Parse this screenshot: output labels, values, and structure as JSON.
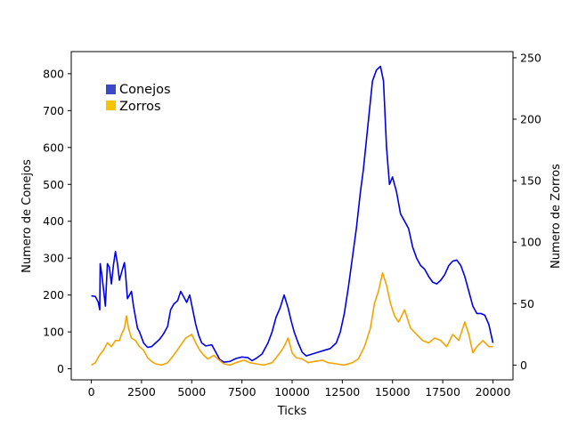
{
  "chart_data": {
    "type": "line",
    "title": "",
    "xlabel": "Ticks",
    "ylabel_left": "Numero de Conejos",
    "ylabel_right": "Numero de Zorros",
    "xlim": [
      -1000,
      21000
    ],
    "ylim_left": [
      -30,
      860
    ],
    "ylim_right": [
      -12,
      255
    ],
    "x_ticks": [
      0,
      2500,
      5000,
      7500,
      10000,
      12500,
      15000,
      17500,
      20000
    ],
    "y_ticks_left": [
      0,
      100,
      200,
      300,
      400,
      500,
      600,
      700,
      800
    ],
    "y_ticks_right": [
      0,
      50,
      100,
      150,
      200,
      250
    ],
    "grid": false,
    "legend_position": "upper-left",
    "legend": [
      {
        "label": "Conejos",
        "color": "#3b49c8"
      },
      {
        "label": "Zorros",
        "color": "#f5c400"
      }
    ],
    "series": [
      {
        "name": "Conejos",
        "axis": "left",
        "color": "#0000e6",
        "points": [
          [
            0,
            198
          ],
          [
            200,
            196
          ],
          [
            350,
            180
          ],
          [
            420,
            160
          ],
          [
            440,
            285
          ],
          [
            520,
            255
          ],
          [
            620,
            210
          ],
          [
            700,
            170
          ],
          [
            800,
            285
          ],
          [
            900,
            275
          ],
          [
            1000,
            230
          ],
          [
            1100,
            280
          ],
          [
            1200,
            318
          ],
          [
            1300,
            285
          ],
          [
            1400,
            240
          ],
          [
            1550,
            270
          ],
          [
            1650,
            288
          ],
          [
            1700,
            260
          ],
          [
            1800,
            190
          ],
          [
            1900,
            200
          ],
          [
            2000,
            210
          ],
          [
            2100,
            170
          ],
          [
            2200,
            140
          ],
          [
            2300,
            110
          ],
          [
            2400,
            100
          ],
          [
            2600,
            70
          ],
          [
            2800,
            58
          ],
          [
            3000,
            60
          ],
          [
            3200,
            70
          ],
          [
            3400,
            80
          ],
          [
            3600,
            95
          ],
          [
            3800,
            115
          ],
          [
            3950,
            160
          ],
          [
            4100,
            175
          ],
          [
            4300,
            185
          ],
          [
            4450,
            210
          ],
          [
            4600,
            195
          ],
          [
            4750,
            180
          ],
          [
            4900,
            200
          ],
          [
            5050,
            160
          ],
          [
            5200,
            120
          ],
          [
            5350,
            90
          ],
          [
            5500,
            70
          ],
          [
            5700,
            62
          ],
          [
            6000,
            65
          ],
          [
            6200,
            45
          ],
          [
            6400,
            25
          ],
          [
            6600,
            18
          ],
          [
            6900,
            20
          ],
          [
            7200,
            28
          ],
          [
            7500,
            32
          ],
          [
            7800,
            30
          ],
          [
            8000,
            22
          ],
          [
            8200,
            28
          ],
          [
            8500,
            40
          ],
          [
            8800,
            70
          ],
          [
            9000,
            100
          ],
          [
            9200,
            140
          ],
          [
            9400,
            165
          ],
          [
            9600,
            200
          ],
          [
            9800,
            165
          ],
          [
            9950,
            130
          ],
          [
            10100,
            100
          ],
          [
            10300,
            70
          ],
          [
            10500,
            45
          ],
          [
            10700,
            35
          ],
          [
            11000,
            40
          ],
          [
            11300,
            45
          ],
          [
            11600,
            50
          ],
          [
            11900,
            55
          ],
          [
            12200,
            70
          ],
          [
            12400,
            100
          ],
          [
            12600,
            150
          ],
          [
            12800,
            220
          ],
          [
            13000,
            300
          ],
          [
            13200,
            380
          ],
          [
            13400,
            480
          ],
          [
            13550,
            540
          ],
          [
            13700,
            620
          ],
          [
            13850,
            700
          ],
          [
            14000,
            780
          ],
          [
            14200,
            810
          ],
          [
            14400,
            820
          ],
          [
            14550,
            780
          ],
          [
            14700,
            600
          ],
          [
            14850,
            500
          ],
          [
            15000,
            520
          ],
          [
            15200,
            480
          ],
          [
            15400,
            420
          ],
          [
            15600,
            400
          ],
          [
            15800,
            380
          ],
          [
            16000,
            330
          ],
          [
            16200,
            300
          ],
          [
            16400,
            280
          ],
          [
            16600,
            270
          ],
          [
            16800,
            250
          ],
          [
            17000,
            235
          ],
          [
            17200,
            230
          ],
          [
            17400,
            240
          ],
          [
            17600,
            255
          ],
          [
            17800,
            280
          ],
          [
            18000,
            292
          ],
          [
            18200,
            295
          ],
          [
            18400,
            280
          ],
          [
            18600,
            250
          ],
          [
            18800,
            210
          ],
          [
            19000,
            170
          ],
          [
            19200,
            150
          ],
          [
            19400,
            150
          ],
          [
            19600,
            145
          ],
          [
            19800,
            120
          ],
          [
            20000,
            70
          ]
        ]
      },
      {
        "name": "Zorros",
        "axis": "right",
        "color": "#f5a300",
        "points": [
          [
            0,
            0
          ],
          [
            200,
            2
          ],
          [
            400,
            8
          ],
          [
            600,
            12
          ],
          [
            800,
            18
          ],
          [
            1000,
            15
          ],
          [
            1200,
            20
          ],
          [
            1400,
            20
          ],
          [
            1500,
            25
          ],
          [
            1650,
            30
          ],
          [
            1750,
            40
          ],
          [
            1850,
            30
          ],
          [
            2000,
            22
          ],
          [
            2200,
            20
          ],
          [
            2400,
            15
          ],
          [
            2600,
            12
          ],
          [
            2800,
            6
          ],
          [
            3000,
            3
          ],
          [
            3200,
            1
          ],
          [
            3500,
            0
          ],
          [
            3800,
            2
          ],
          [
            4100,
            8
          ],
          [
            4400,
            15
          ],
          [
            4700,
            22
          ],
          [
            5000,
            25
          ],
          [
            5200,
            18
          ],
          [
            5400,
            12
          ],
          [
            5600,
            8
          ],
          [
            5800,
            5
          ],
          [
            6100,
            8
          ],
          [
            6300,
            5
          ],
          [
            6600,
            1
          ],
          [
            6900,
            0
          ],
          [
            7200,
            2
          ],
          [
            7600,
            4
          ],
          [
            7900,
            2
          ],
          [
            8200,
            1
          ],
          [
            8600,
            0
          ],
          [
            9000,
            2
          ],
          [
            9300,
            8
          ],
          [
            9600,
            15
          ],
          [
            9800,
            22
          ],
          [
            10000,
            10
          ],
          [
            10200,
            6
          ],
          [
            10500,
            5
          ],
          [
            10800,
            2
          ],
          [
            11100,
            3
          ],
          [
            11500,
            4
          ],
          [
            11800,
            2
          ],
          [
            12200,
            1
          ],
          [
            12600,
            0
          ],
          [
            13000,
            2
          ],
          [
            13300,
            5
          ],
          [
            13600,
            15
          ],
          [
            13900,
            30
          ],
          [
            14100,
            50
          ],
          [
            14300,
            60
          ],
          [
            14500,
            75
          ],
          [
            14700,
            65
          ],
          [
            14900,
            50
          ],
          [
            15100,
            40
          ],
          [
            15300,
            35
          ],
          [
            15600,
            45
          ],
          [
            15900,
            30
          ],
          [
            16200,
            25
          ],
          [
            16500,
            20
          ],
          [
            16800,
            18
          ],
          [
            17100,
            22
          ],
          [
            17400,
            20
          ],
          [
            17700,
            15
          ],
          [
            18000,
            25
          ],
          [
            18300,
            20
          ],
          [
            18600,
            35
          ],
          [
            18800,
            25
          ],
          [
            19000,
            10
          ],
          [
            19200,
            15
          ],
          [
            19500,
            20
          ],
          [
            19800,
            15
          ],
          [
            20000,
            15
          ]
        ]
      }
    ]
  }
}
